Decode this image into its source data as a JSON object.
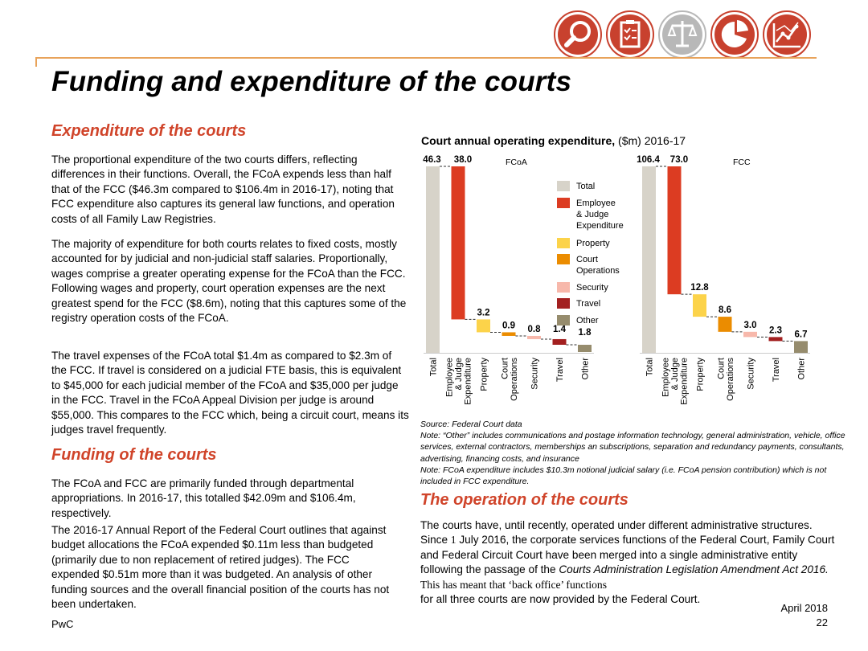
{
  "header": {
    "icons": [
      "magnifier-icon",
      "clipboard-checklist-icon",
      "scales-of-justice-icon",
      "pie-chart-icon",
      "line-chart-icon"
    ],
    "accent_color": "#c8412e",
    "title": "Funding and expenditure of the courts"
  },
  "left": {
    "section1_title": "Expenditure of the courts",
    "p1": "The proportional expenditure of the two courts differs, reflecting differences in their functions. Overall, the FCoA expends less than half that of the FCC ($46.3m compared to $106.4m in 2016-17), noting that FCC expenditure also captures its general law functions, and operation costs of all Family Law Registries.",
    "p2": "The majority of expenditure for both courts relates to fixed costs, mostly accounted for by judicial and non-judicial staff salaries. Proportionally, wages comprise a greater operating expense for the FCoA than the FCC.  Following wages and property, court operation expenses are the next greatest spend for the FCC ($8.6m), noting that this captures some of the registry operation costs of the FCoA.",
    "p3": "The travel expenses of the FCoA total $1.4m as compared to $2.3m of the FCC. If travel is considered on a judicial FTE basis, this is equivalent to $45,000 for each judicial member of the FCoA and $35,000 per judge in the FCC. Travel in the FCoA Appeal Division per judge is around $55,000. This compares to the FCC which, being a circuit court, means its judges travel frequently.",
    "section2_title": "Funding of the courts",
    "p4": "The FCoA and FCC are primarily funded through departmental appropriations. In 2016-17, this totalled $42.09m and $106.4m, respectively.",
    "p5": "The 2016-17 Annual Report of the Federal Court outlines that against budget allocations the FCoA expended $0.11m less than budgeted (primarily due to non replacement of retired judges). The FCC expended $0.51m more than it was budgeted. An analysis of other funding sources and the overall financial position of the courts has not been undertaken."
  },
  "chart_title_bold": "Court annual operating expenditure,",
  "chart_title_rest": " ($m) 2016-17",
  "chart_data": {
    "type": "bar",
    "subtype": "waterfall",
    "unit": "$m",
    "categories": [
      "Total",
      "Employee & Judge Expenditure",
      "Property",
      "Court Operations",
      "Security",
      "Travel",
      "Other"
    ],
    "tick_labels": [
      [
        "Total"
      ],
      [
        "Employee",
        "& Judge",
        "Expenditure"
      ],
      [
        "Property"
      ],
      [
        "Court",
        "Operations"
      ],
      [
        "Security"
      ],
      [
        "Travel"
      ],
      [
        "Other"
      ]
    ],
    "legend": [
      "Total",
      "Employee & Judge Expenditure",
      "Property",
      "Court Operations",
      "Security",
      "Travel",
      "Other"
    ],
    "legend_placement": "center",
    "colors": {
      "Total": "#d7d3c9",
      "Employee & Judge Expenditure": "#dc3c22",
      "Property": "#fcd34a",
      "Court Operations": "#eb8c00",
      "Security": "#f7b8ab",
      "Travel": "#a32020",
      "Other": "#968c6d"
    },
    "panels": [
      {
        "name": "FCoA",
        "values": [
          46.3,
          38.0,
          3.2,
          0.9,
          0.8,
          1.4,
          1.8
        ],
        "labels": [
          "46.3",
          "38.0",
          "3.2",
          "0.9",
          "0.8",
          "1.4",
          "1.8"
        ]
      },
      {
        "name": "FCC",
        "values": [
          106.4,
          73.0,
          12.8,
          8.6,
          3.0,
          2.3,
          6.7
        ],
        "labels": [
          "106.4",
          "73.0",
          "12.8",
          "8.6",
          "3.0",
          "2.3",
          "6.7"
        ]
      }
    ],
    "grid": false
  },
  "notes": {
    "source": "Source: Federal Court data",
    "note1": "Note: “Other” includes communications and postage information technology, general administration, vehicle, office services, external contractors, memberships an subscriptions, separation and redundancy payments, consultants, advertising, financing costs, and insurance",
    "note2": "Note: FCoA expenditure includes $10.3m notional judicial salary (i.e. FCoA pension contribution) which is not included in FCC expenditure."
  },
  "right": {
    "section3_title": "The operation of the courts",
    "p6a": "The courts have, until recently, operated under different administrative structures. Since ",
    "p6b": "1",
    "p6c": " July 2016, the corporate services functions of the Federal Court, Family Court and Federal Circuit Court have been merged into a single administrative entity following the passage of the ",
    "p6d": "Courts Administration Legislation Amendment Act 2016.",
    "p6e": " This has meant that ‘back office’ functions",
    "p6f": "for all three courts are now provided by the Federal Court."
  },
  "footer": {
    "left": "PwC",
    "date": "April 2018",
    "page": "22"
  }
}
